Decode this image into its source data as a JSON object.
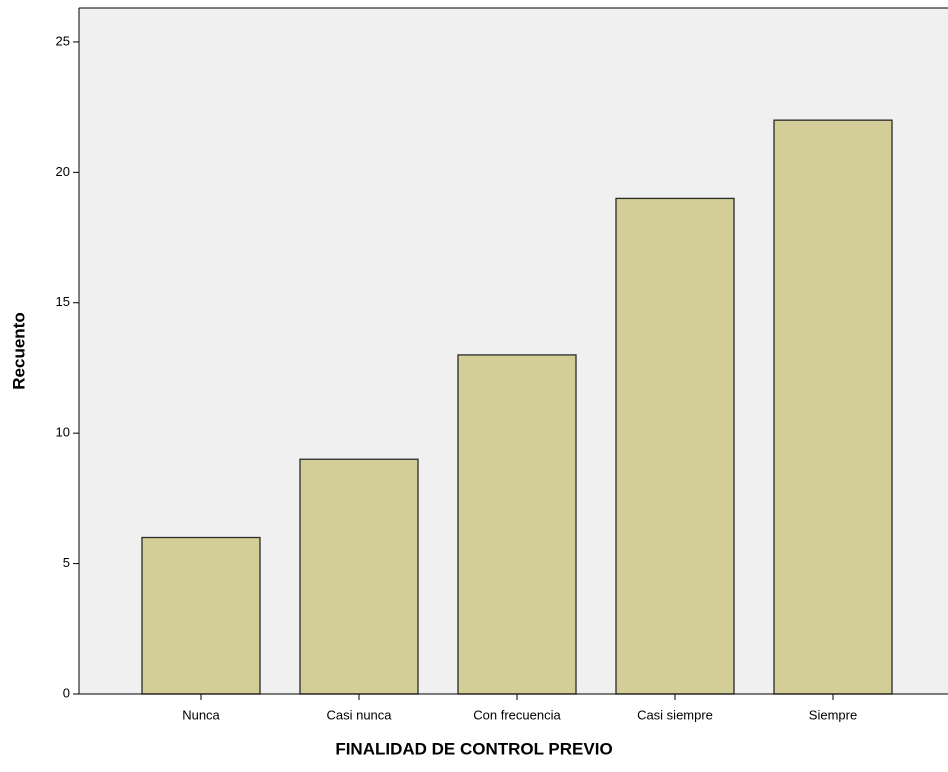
{
  "chart_data": {
    "type": "bar",
    "x_label": "FINALIDAD DE CONTROL PREVIO",
    "y_label": "Recuento",
    "categories": [
      "Nunca",
      "Casi nunca",
      "Con frecuencia",
      "Casi siempre",
      "Siempre"
    ],
    "values": [
      6,
      9,
      13,
      19,
      22
    ],
    "color": "#d3ce97",
    "ylim": [
      0,
      26.3
    ],
    "yticks": [
      0,
      5,
      10,
      15,
      20,
      25
    ],
    "grid": false
  }
}
